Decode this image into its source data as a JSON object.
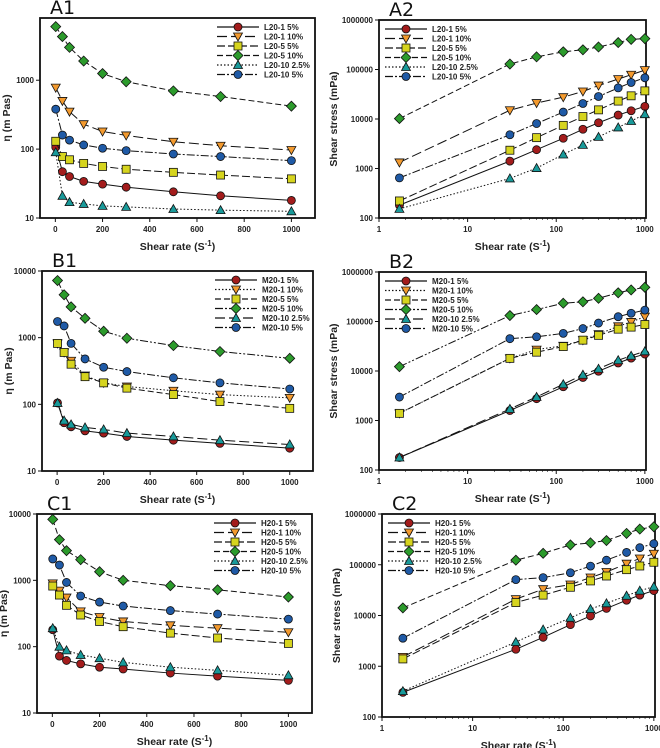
{
  "colors": {
    "s1": "#a31c1c",
    "s2": "#f39a2e",
    "s3": "#d6d41e",
    "s4": "#2c9b2c",
    "s5": "#199a9a",
    "s6": "#1f5aa6"
  },
  "chart_data": [
    {
      "type": "line",
      "title": "A1",
      "xlabel": "Shear rate (S-1)",
      "ylabel": "η (m Pas)",
      "xscale": "linear",
      "yscale": "log",
      "xlim": [
        -65,
        1100
      ],
      "ylim": [
        10,
        8000
      ],
      "xticks": [
        0,
        200,
        400,
        600,
        800,
        1000
      ],
      "yticks": [
        10,
        100,
        1000
      ],
      "legend": "top-right",
      "grid": false,
      "x": [
        1.7,
        30,
        60,
        120,
        200,
        300,
        500,
        700,
        1000
      ],
      "series": [
        {
          "name": "L20-1 5%",
          "values": [
            107,
            47,
            40,
            34,
            31,
            28,
            24,
            21,
            18
          ]
        },
        {
          "name": "L20-1 10%",
          "values": [
            780,
            500,
            350,
            230,
            180,
            158,
            128,
            112,
            97
          ]
        },
        {
          "name": "L20-5 5%",
          "values": [
            130,
            78,
            70,
            62,
            56,
            51,
            46,
            42,
            37
          ]
        },
        {
          "name": "L20-5 10%",
          "values": [
            6000,
            4300,
            3000,
            1900,
            1250,
            950,
            700,
            580,
            420
          ]
        },
        {
          "name": "L20-10 2.5%",
          "values": [
            90,
            21,
            17,
            16,
            15,
            14.5,
            13.5,
            13,
            12.5
          ]
        },
        {
          "name": "L20-10 5%",
          "values": [
            380,
            160,
            135,
            115,
            103,
            95,
            85,
            78,
            68
          ]
        }
      ]
    },
    {
      "type": "line",
      "title": "A2",
      "xlabel": "Shear rate (S-1)",
      "ylabel": "Shear stress (mPa)",
      "xscale": "log",
      "yscale": "log",
      "xlim": [
        1,
        1030
      ],
      "ylim": [
        100,
        1000000
      ],
      "xticks": [
        1,
        10,
        100,
        1000
      ],
      "yticks": [
        100,
        1000,
        10000,
        100000,
        1000000
      ],
      "legend": "top-left",
      "grid": false,
      "x": [
        1.7,
        30,
        60,
        120,
        200,
        300,
        500,
        700,
        1000
      ],
      "series": [
        {
          "name": "L20-1 5%",
          "values": [
            182,
            1410,
            2400,
            4080,
            6200,
            8400,
            12000,
            14700,
            18000
          ]
        },
        {
          "name": "L20-1 10%",
          "values": [
            1326,
            15000,
            21000,
            27600,
            36000,
            47400,
            64000,
            78400,
            97000
          ]
        },
        {
          "name": "L20-5 5%",
          "values": [
            221,
            2340,
            4200,
            7440,
            11200,
            15300,
            23000,
            29400,
            37000
          ]
        },
        {
          "name": "L20-5 10%",
          "values": [
            10200,
            129000,
            180000,
            228000,
            250000,
            285000,
            350000,
            406000,
            420000
          ]
        },
        {
          "name": "L20-10 2.5%",
          "values": [
            153,
            630,
            1020,
            1920,
            3000,
            4350,
            6750,
            9100,
            12500
          ]
        },
        {
          "name": "L20-10 5%",
          "values": [
            646,
            4800,
            8100,
            13800,
            20600,
            28500,
            42500,
            54600,
            68000
          ]
        }
      ]
    },
    {
      "type": "line",
      "title": "B1",
      "xlabel": "Shear rate (S-1)",
      "ylabel": "η (m Pas)",
      "xscale": "linear",
      "yscale": "log",
      "xlim": [
        -65,
        1100
      ],
      "ylim": [
        10,
        10000
      ],
      "xticks": [
        0,
        200,
        400,
        600,
        800,
        1000
      ],
      "yticks": [
        10,
        100,
        1000,
        10000
      ],
      "legend": "top-right",
      "grid": false,
      "x": [
        1.7,
        30,
        60,
        120,
        200,
        300,
        500,
        700,
        1000
      ],
      "series": [
        {
          "name": "M20-1 5%",
          "values": [
            105,
            53,
            46,
            40,
            37,
            33,
            29,
            26,
            22
          ]
        },
        {
          "name": "M20-1 10%",
          "values": [
            820,
            600,
            450,
            270,
            210,
            185,
            160,
            140,
            125
          ]
        },
        {
          "name": "M20-5 5%",
          "values": [
            820,
            600,
            400,
            260,
            210,
            175,
            140,
            110,
            87
          ]
        },
        {
          "name": "M20-5 10%",
          "values": [
            7200,
            4400,
            2900,
            1950,
            1250,
            980,
            760,
            620,
            490
          ]
        },
        {
          "name": "M20-10 2.5%",
          "values": [
            105,
            57,
            50,
            45,
            42,
            37,
            33,
            29,
            25
          ]
        },
        {
          "name": "M20-10 5%",
          "values": [
            1750,
            1500,
            820,
            480,
            360,
            310,
            250,
            210,
            170
          ]
        }
      ]
    },
    {
      "type": "line",
      "title": "B2",
      "xlabel": "Shear rate (S-1)",
      "ylabel": "Shear stress (mPa)",
      "xscale": "log",
      "yscale": "log",
      "xlim": [
        1,
        1030
      ],
      "ylim": [
        100,
        1000000
      ],
      "xticks": [
        1,
        10,
        100,
        1000
      ],
      "yticks": [
        100,
        1000,
        10000,
        100000,
        1000000
      ],
      "legend": "top-left",
      "grid": false,
      "x": [
        1.7,
        30,
        60,
        120,
        200,
        300,
        500,
        700,
        1000
      ],
      "series": [
        {
          "name": "M20-1 5%",
          "values": [
            179,
            1590,
            2760,
            4800,
            7400,
            9900,
            14500,
            18200,
            22000
          ]
        },
        {
          "name": "M20-1 10%",
          "values": [
            1394,
            18000,
            27000,
            32400,
            42000,
            55500,
            80000,
            98000,
            125000
          ]
        },
        {
          "name": "M20-5 5%",
          "values": [
            1394,
            18000,
            24000,
            31200,
            42000,
            52500,
            70000,
            77000,
            87000
          ]
        },
        {
          "name": "M20-5 10%",
          "values": [
            12240,
            132000,
            174000,
            234000,
            250000,
            294000,
            380000,
            434000,
            490000
          ]
        },
        {
          "name": "M20-10 2.5%",
          "values": [
            179,
            1710,
            3000,
            5400,
            8400,
            11100,
            16500,
            20300,
            25000
          ]
        },
        {
          "name": "M20-10 5%",
          "values": [
            2975,
            45000,
            49200,
            57600,
            72000,
            93000,
            125000,
            147000,
            170000
          ]
        }
      ]
    },
    {
      "type": "line",
      "title": "C1",
      "xlabel": "Shear rate (S-1)",
      "ylabel": "η (m Pas)",
      "xscale": "linear",
      "yscale": "log",
      "xlim": [
        -65,
        1100
      ],
      "ylim": [
        10,
        10000
      ],
      "xticks": [
        0,
        200,
        400,
        600,
        800,
        1000
      ],
      "yticks": [
        10,
        100,
        1000,
        10000
      ],
      "legend": "top-right",
      "grid": false,
      "x": [
        1.7,
        30,
        60,
        120,
        200,
        300,
        500,
        700,
        1000
      ],
      "series": [
        {
          "name": "H20-1 5%",
          "values": [
            180,
            72,
            62,
            55,
            49,
            46,
            40,
            36,
            31
          ]
        },
        {
          "name": "H20-1 10%",
          "values": [
            900,
            700,
            550,
            340,
            280,
            240,
            210,
            190,
            165
          ]
        },
        {
          "name": "H20-5 5%",
          "values": [
            820,
            600,
            420,
            300,
            240,
            200,
            160,
            135,
            112
          ]
        },
        {
          "name": "H20-5 10%",
          "values": [
            8300,
            4100,
            2800,
            2050,
            1350,
            1000,
            830,
            720,
            560
          ]
        },
        {
          "name": "H20-10 2.5%",
          "values": [
            190,
            100,
            88,
            75,
            67,
            58,
            49,
            44,
            37
          ]
        },
        {
          "name": "H20-10 5%",
          "values": [
            2100,
            1700,
            930,
            580,
            470,
            410,
            350,
            310,
            260
          ]
        }
      ]
    },
    {
      "type": "line",
      "title": "C2",
      "xlabel": "Shear rate (S-1)",
      "ylabel": "Shear stress (mPa)",
      "xscale": "log",
      "yscale": "log",
      "xlim": [
        1,
        1030
      ],
      "ylim": [
        100,
        1000000
      ],
      "xticks": [
        1,
        10,
        100,
        1000
      ],
      "yticks": [
        100,
        1000,
        10000,
        100000,
        1000000
      ],
      "legend": "top-left",
      "grid": false,
      "x": [
        1.7,
        30,
        60,
        120,
        200,
        300,
        500,
        700,
        1000
      ],
      "series": [
        {
          "name": "H20-1 5%",
          "values": [
            306,
            2160,
            3720,
            6600,
            9800,
            13800,
            20000,
            25200,
            31000
          ]
        },
        {
          "name": "H20-1 10%",
          "values": [
            1530,
            21000,
            33000,
            40800,
            56000,
            72000,
            105000,
            133000,
            165000
          ]
        },
        {
          "name": "H20-5 5%",
          "values": [
            1394,
            18000,
            25200,
            36000,
            48000,
            60000,
            80000,
            94500,
            112000
          ]
        },
        {
          "name": "H20-5 10%",
          "values": [
            14110,
            123000,
            168000,
            246000,
            270000,
            300000,
            415000,
            504000,
            560000
          ]
        },
        {
          "name": "H20-10 2.5%",
          "values": [
            323,
            3000,
            5280,
            9000,
            13400,
            17400,
            24500,
            30800,
            37000
          ]
        },
        {
          "name": "H20-10 5%",
          "values": [
            3570,
            51000,
            55800,
            69600,
            94000,
            123000,
            175000,
            217000,
            260000
          ]
        }
      ]
    }
  ]
}
